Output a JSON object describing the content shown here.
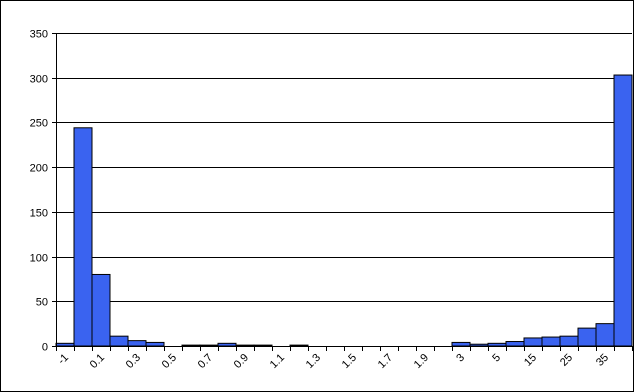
{
  "chart_data": {
    "type": "bar",
    "title": "",
    "xlabel": "",
    "ylabel": "",
    "ylim": [
      0,
      350
    ],
    "yticks": [
      0,
      50,
      100,
      150,
      200,
      250,
      300,
      350
    ],
    "ytick_labels": [
      "0",
      "50",
      "100",
      "150",
      "200",
      "250",
      "300",
      "350"
    ],
    "grid": true,
    "legend": "none",
    "bar_color": "#3a63f0",
    "bar_edge_color": "#000000",
    "categories": [
      "-1",
      "",
      "0.1",
      "",
      "0.3",
      "",
      "0.5",
      "",
      "0.7",
      "",
      "0.9",
      "",
      "1.1",
      "",
      "1.3",
      "",
      "1.5",
      "",
      "1.7",
      "",
      "1.9",
      "",
      "3",
      "",
      "5",
      "",
      "15",
      "",
      "25",
      "",
      "35",
      ""
    ],
    "values": [
      3,
      244,
      80,
      11,
      6,
      4,
      0,
      1,
      1,
      3,
      1,
      1,
      0,
      1,
      0,
      0,
      0,
      0,
      0,
      0,
      0,
      0,
      4,
      2,
      3,
      5,
      9,
      10,
      11,
      20,
      25,
      303
    ]
  }
}
